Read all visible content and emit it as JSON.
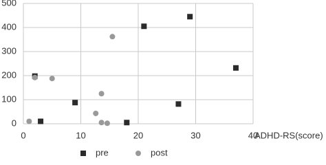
{
  "chart_data": {
    "type": "scatter",
    "x_label": "ADHD-RS(score)",
    "xlim": [
      0,
      40
    ],
    "xticks": [
      0,
      10,
      20,
      30,
      40
    ],
    "ylim": [
      0,
      500
    ],
    "yticks": [
      0,
      100,
      200,
      300,
      400,
      500
    ],
    "grid": true,
    "legend": "bottom",
    "series": [
      {
        "name": "pre",
        "color": "#2b2b2b",
        "marker": "square",
        "x": [
          2,
          3,
          9,
          18,
          21,
          27,
          29,
          37
        ],
        "values": [
          198,
          10,
          88,
          5,
          405,
          82,
          445,
          232
        ]
      },
      {
        "name": "post",
        "color": "#999999",
        "marker": "circle",
        "x": [
          1,
          2,
          5,
          15.5,
          13.6,
          12.6,
          13.6,
          14.6
        ],
        "values": [
          10,
          192,
          188,
          362,
          125,
          43,
          5,
          2
        ]
      }
    ]
  }
}
